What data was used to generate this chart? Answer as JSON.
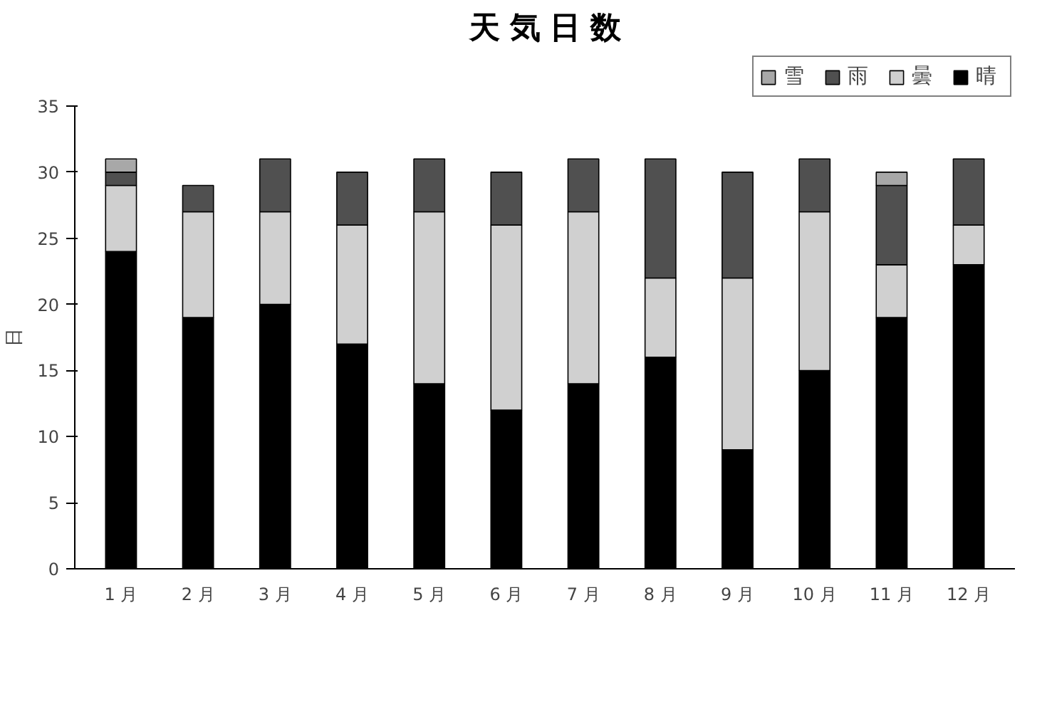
{
  "chart_data": {
    "type": "bar",
    "title": "天 気 日 数",
    "ylabel": "日",
    "stacked": true,
    "categories": [
      "1 月",
      "2 月",
      "3 月",
      "4 月",
      "5 月",
      "6 月",
      "7 月",
      "8 月",
      "9 月",
      "10 月",
      "11 月",
      "12 月"
    ],
    "series": [
      {
        "name": "晴",
        "color": "#000000",
        "values": [
          24,
          19,
          20,
          17,
          14,
          12,
          14,
          16,
          9,
          15,
          19,
          23
        ]
      },
      {
        "name": "曇",
        "color": "#d0d0d0",
        "values": [
          5,
          8,
          7,
          9,
          13,
          14,
          13,
          6,
          13,
          12,
          4,
          3
        ]
      },
      {
        "name": "雨",
        "color": "#505050",
        "values": [
          1,
          2,
          4,
          4,
          4,
          4,
          4,
          9,
          8,
          4,
          6,
          5
        ]
      },
      {
        "name": "雪",
        "color": "#a8a8a8",
        "values": [
          1,
          0,
          0,
          0,
          0,
          0,
          0,
          0,
          0,
          0,
          1,
          0
        ]
      }
    ],
    "ylim": [
      0,
      35
    ],
    "yticks": [
      0,
      5,
      10,
      15,
      20,
      25,
      30,
      35
    ],
    "grid": false,
    "legend": "top right"
  }
}
